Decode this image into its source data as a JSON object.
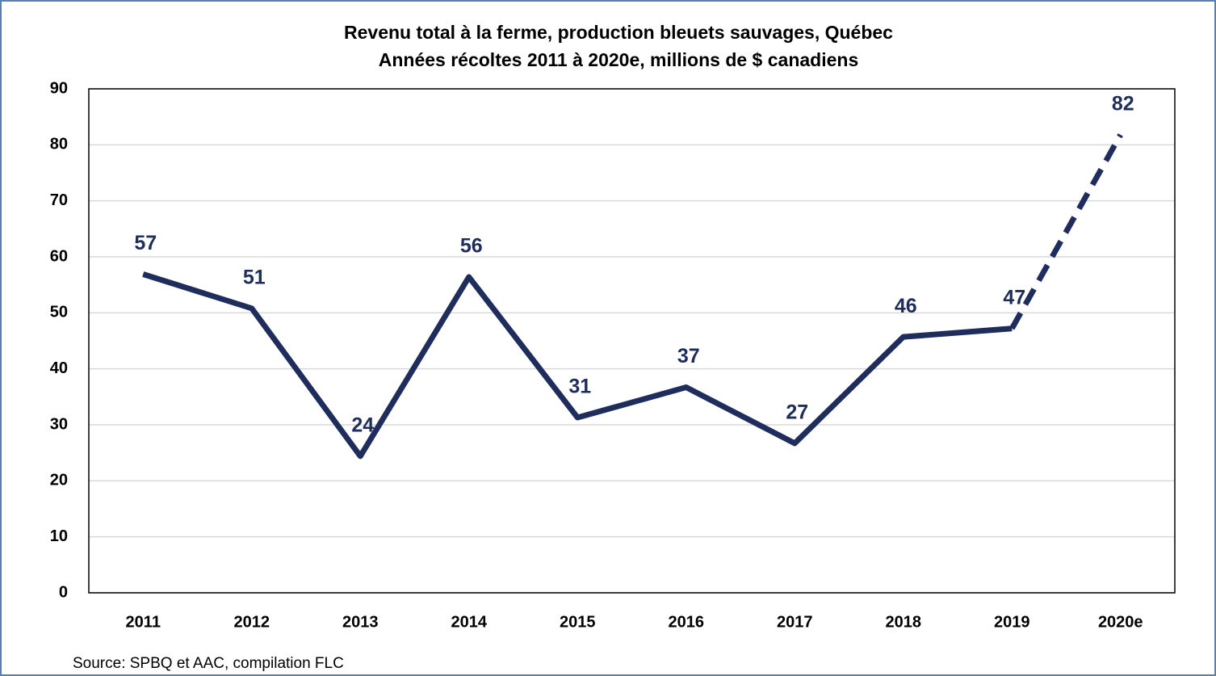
{
  "chart_data": {
    "type": "line",
    "title": "Revenu total à la ferme, production bleuets sauvages, Québec",
    "subtitle": "Années récoltes 2011 à 2020e, millions de $ canadiens",
    "source": "Source: SPBQ et AAC, compilation FLC",
    "categories": [
      "2011",
      "2012",
      "2013",
      "2014",
      "2015",
      "2016",
      "2017",
      "2018",
      "2019",
      "2020e"
    ],
    "series": [
      {
        "color": "#1f2d5c",
        "values": [
          56.9,
          50.8,
          24.4,
          56.4,
          31.3,
          36.7,
          26.7,
          45.7,
          47.2,
          81.8
        ],
        "value_labels": [
          "57",
          "51",
          "24",
          "56",
          "31",
          "37",
          "27",
          "46",
          "47",
          "82"
        ]
      }
    ],
    "dashed_segments": [
      8
    ],
    "ylim": [
      0,
      90
    ],
    "yticks": [
      0,
      10,
      20,
      30,
      40,
      50,
      60,
      70,
      80,
      90
    ],
    "grid": true
  }
}
